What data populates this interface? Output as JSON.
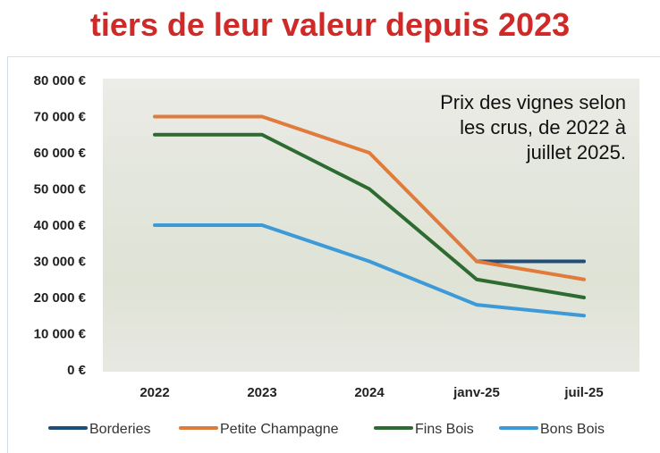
{
  "headline": {
    "line1": "",
    "line2": "tiers de leur valeur depuis 2023"
  },
  "chart_data": {
    "type": "line",
    "title": "",
    "annotation": [
      "Prix des vignes selon",
      "les crus, de 2022 à",
      "juillet 2025."
    ],
    "categories": [
      "2022",
      "2023",
      "2024",
      "janv-25",
      "juil-25"
    ],
    "ylim": [
      0,
      80000
    ],
    "yticks": [
      0,
      10000,
      20000,
      30000,
      40000,
      50000,
      60000,
      70000,
      80000
    ],
    "ytick_labels": [
      "0 €",
      "10 000 €",
      "20 000 €",
      "30 000 €",
      "40 000 €",
      "50 000 €",
      "60 000 €",
      "70 000 €",
      "80 000 €"
    ],
    "grid": false,
    "legend": "bottom",
    "series": [
      {
        "name": "Borderies",
        "color": "#1f4e79",
        "values": [
          null,
          null,
          null,
          30000,
          30000
        ]
      },
      {
        "name": "Petite Champagne",
        "color": "#e07b3c",
        "values": [
          70000,
          70000,
          60000,
          30000,
          25000
        ]
      },
      {
        "name": "Fins Bois",
        "color": "#2e6b30",
        "values": [
          65000,
          65000,
          50000,
          25000,
          20000
        ]
      },
      {
        "name": "Bons Bois",
        "color": "#3d9ad8",
        "values": [
          40000,
          40000,
          30000,
          18000,
          15000
        ]
      }
    ]
  }
}
